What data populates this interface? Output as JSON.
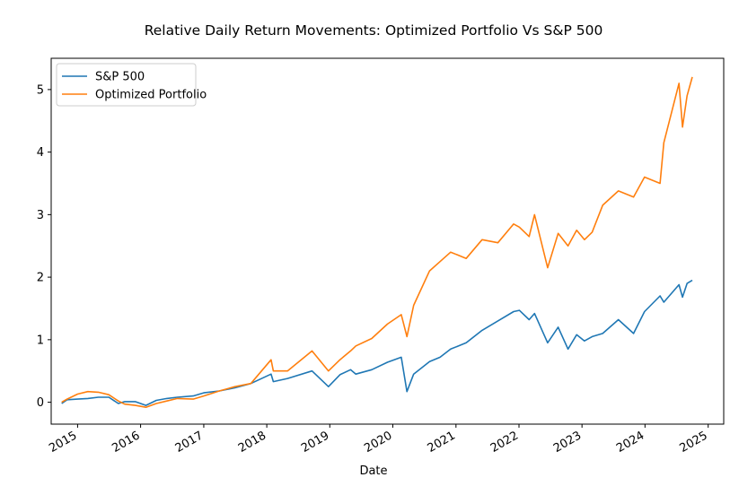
{
  "chart_data": {
    "type": "line",
    "title": "Relative Daily Return Movements: Optimized Portfolio Vs S&P 500",
    "xlabel": "Date",
    "ylabel": "",
    "xlim": [
      "2014-08-01",
      "2025-04-01"
    ],
    "ylim": [
      -0.35,
      5.5
    ],
    "x_ticks": [
      "2015",
      "2016",
      "2017",
      "2018",
      "2019",
      "2020",
      "2021",
      "2022",
      "2023",
      "2024",
      "2025"
    ],
    "y_ticks": [
      0,
      1,
      2,
      3,
      4,
      5
    ],
    "grid": false,
    "legend_position": "top-left",
    "series": [
      {
        "name": "S&P 500",
        "color": "#1f77b4",
        "points": [
          [
            "2014-10-01",
            -0.02
          ],
          [
            "2014-11-01",
            0.04
          ],
          [
            "2015-01-01",
            0.05
          ],
          [
            "2015-03-01",
            0.06
          ],
          [
            "2015-05-01",
            0.08
          ],
          [
            "2015-07-01",
            0.08
          ],
          [
            "2015-08-25",
            -0.02
          ],
          [
            "2015-10-01",
            0.01
          ],
          [
            "2015-12-01",
            0.01
          ],
          [
            "2016-02-01",
            -0.05
          ],
          [
            "2016-04-01",
            0.03
          ],
          [
            "2016-06-01",
            0.06
          ],
          [
            "2016-08-01",
            0.08
          ],
          [
            "2016-11-01",
            0.1
          ],
          [
            "2017-01-01",
            0.15
          ],
          [
            "2017-04-01",
            0.18
          ],
          [
            "2017-07-01",
            0.23
          ],
          [
            "2017-10-01",
            0.3
          ],
          [
            "2018-01-26",
            0.45
          ],
          [
            "2018-02-08",
            0.33
          ],
          [
            "2018-05-01",
            0.38
          ],
          [
            "2018-09-20",
            0.5
          ],
          [
            "2018-12-24",
            0.25
          ],
          [
            "2019-03-01",
            0.44
          ],
          [
            "2019-05-01",
            0.52
          ],
          [
            "2019-06-01",
            0.45
          ],
          [
            "2019-09-01",
            0.52
          ],
          [
            "2019-12-01",
            0.64
          ],
          [
            "2020-02-19",
            0.72
          ],
          [
            "2020-03-23",
            0.17
          ],
          [
            "2020-05-01",
            0.45
          ],
          [
            "2020-08-01",
            0.65
          ],
          [
            "2020-10-01",
            0.72
          ],
          [
            "2020-12-01",
            0.85
          ],
          [
            "2021-03-01",
            0.95
          ],
          [
            "2021-06-01",
            1.15
          ],
          [
            "2021-09-01",
            1.3
          ],
          [
            "2021-12-01",
            1.45
          ],
          [
            "2022-01-03",
            1.47
          ],
          [
            "2022-03-01",
            1.32
          ],
          [
            "2022-04-01",
            1.42
          ],
          [
            "2022-06-16",
            0.95
          ],
          [
            "2022-08-16",
            1.2
          ],
          [
            "2022-10-12",
            0.85
          ],
          [
            "2022-12-01",
            1.08
          ],
          [
            "2023-01-15",
            0.98
          ],
          [
            "2023-03-01",
            1.05
          ],
          [
            "2023-05-01",
            1.1
          ],
          [
            "2023-07-31",
            1.32
          ],
          [
            "2023-10-27",
            1.1
          ],
          [
            "2023-12-29",
            1.45
          ],
          [
            "2024-03-28",
            1.7
          ],
          [
            "2024-04-19",
            1.6
          ],
          [
            "2024-07-16",
            1.88
          ],
          [
            "2024-08-05",
            1.68
          ],
          [
            "2024-09-01",
            1.9
          ],
          [
            "2024-10-01",
            1.95
          ]
        ]
      },
      {
        "name": "Optimized Portfolio",
        "color": "#ff7f0e",
        "points": [
          [
            "2014-10-01",
            0.0
          ],
          [
            "2014-11-01",
            0.05
          ],
          [
            "2015-01-01",
            0.13
          ],
          [
            "2015-03-01",
            0.17
          ],
          [
            "2015-05-01",
            0.16
          ],
          [
            "2015-07-01",
            0.12
          ],
          [
            "2015-08-25",
            0.02
          ],
          [
            "2015-10-01",
            -0.03
          ],
          [
            "2015-12-01",
            -0.05
          ],
          [
            "2016-02-01",
            -0.08
          ],
          [
            "2016-04-01",
            -0.02
          ],
          [
            "2016-06-01",
            0.02
          ],
          [
            "2016-08-01",
            0.06
          ],
          [
            "2016-11-01",
            0.05
          ],
          [
            "2017-01-01",
            0.1
          ],
          [
            "2017-04-01",
            0.18
          ],
          [
            "2017-07-01",
            0.25
          ],
          [
            "2017-10-01",
            0.3
          ],
          [
            "2018-01-26",
            0.68
          ],
          [
            "2018-02-08",
            0.5
          ],
          [
            "2018-05-01",
            0.5
          ],
          [
            "2018-09-20",
            0.82
          ],
          [
            "2018-12-24",
            0.5
          ],
          [
            "2019-03-01",
            0.68
          ],
          [
            "2019-05-01",
            0.82
          ],
          [
            "2019-06-01",
            0.9
          ],
          [
            "2019-09-01",
            1.02
          ],
          [
            "2019-12-01",
            1.25
          ],
          [
            "2020-02-19",
            1.4
          ],
          [
            "2020-03-23",
            1.05
          ],
          [
            "2020-05-01",
            1.55
          ],
          [
            "2020-08-01",
            2.1
          ],
          [
            "2020-10-01",
            2.25
          ],
          [
            "2020-12-01",
            2.4
          ],
          [
            "2021-03-01",
            2.3
          ],
          [
            "2021-06-01",
            2.6
          ],
          [
            "2021-09-01",
            2.55
          ],
          [
            "2021-12-01",
            2.85
          ],
          [
            "2022-01-03",
            2.8
          ],
          [
            "2022-03-01",
            2.65
          ],
          [
            "2022-04-01",
            3.0
          ],
          [
            "2022-06-16",
            2.15
          ],
          [
            "2022-08-16",
            2.7
          ],
          [
            "2022-10-12",
            2.5
          ],
          [
            "2022-12-01",
            2.75
          ],
          [
            "2023-01-15",
            2.6
          ],
          [
            "2023-03-01",
            2.72
          ],
          [
            "2023-05-01",
            3.15
          ],
          [
            "2023-07-31",
            3.38
          ],
          [
            "2023-10-27",
            3.28
          ],
          [
            "2023-12-29",
            3.6
          ],
          [
            "2024-03-28",
            3.5
          ],
          [
            "2024-04-19",
            4.15
          ],
          [
            "2024-07-16",
            5.1
          ],
          [
            "2024-08-05",
            4.4
          ],
          [
            "2024-09-01",
            4.9
          ],
          [
            "2024-10-01",
            5.2
          ]
        ]
      }
    ]
  }
}
